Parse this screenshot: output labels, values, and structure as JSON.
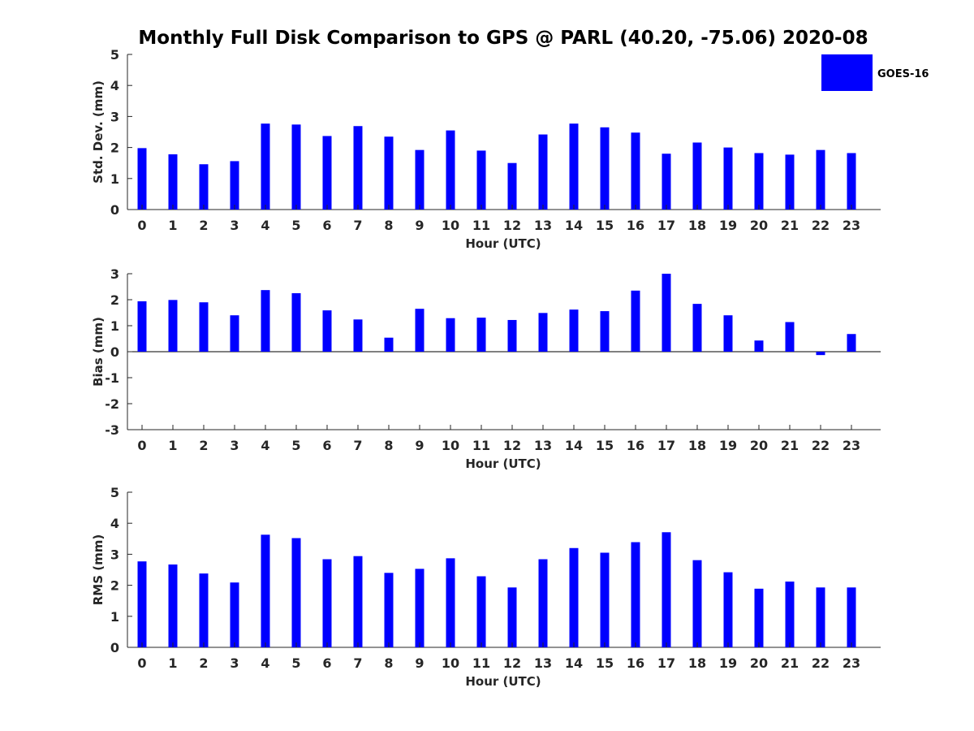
{
  "figure": {
    "title": "Monthly Full Disk Comparison to GPS @ PARL (40.20, -75.06) 2020-08",
    "legend": {
      "label": "GOES-16",
      "color": "#0000ff",
      "placement": "top-right"
    },
    "bar_color": "#0000ff"
  },
  "chart_data": [
    {
      "type": "bar",
      "categories": [
        "0",
        "1",
        "2",
        "3",
        "4",
        "5",
        "6",
        "7",
        "8",
        "9",
        "10",
        "11",
        "12",
        "13",
        "14",
        "15",
        "16",
        "17",
        "18",
        "19",
        "20",
        "21",
        "22",
        "23"
      ],
      "series": [
        {
          "name": "GOES-16",
          "values": [
            1.98,
            1.78,
            1.46,
            1.56,
            2.77,
            2.74,
            2.37,
            2.69,
            2.35,
            1.92,
            2.55,
            1.9,
            1.5,
            2.42,
            2.77,
            2.65,
            2.48,
            1.8,
            2.16,
            2.0,
            1.82,
            1.77,
            1.92,
            1.82
          ]
        }
      ],
      "xlabel": "Hour (UTC)",
      "ylabel": "Std. Dev. (mm)",
      "ylim": [
        0,
        5
      ],
      "yticks": [
        "0",
        "1",
        "2",
        "3",
        "4",
        "5"
      ],
      "grid": false
    },
    {
      "type": "bar",
      "categories": [
        "0",
        "1",
        "2",
        "3",
        "4",
        "5",
        "6",
        "7",
        "8",
        "9",
        "10",
        "11",
        "12",
        "13",
        "14",
        "15",
        "16",
        "17",
        "18",
        "19",
        "20",
        "21",
        "22",
        "23"
      ],
      "series": [
        {
          "name": "GOES-16",
          "values": [
            1.94,
            1.99,
            1.9,
            1.4,
            2.37,
            2.25,
            1.59,
            1.24,
            0.54,
            1.65,
            1.29,
            1.31,
            1.22,
            1.49,
            1.62,
            1.56,
            2.35,
            3.0,
            1.84,
            1.4,
            0.43,
            1.14,
            -0.13,
            0.68
          ]
        }
      ],
      "xlabel": "Hour (UTC)",
      "ylabel": "Bias (mm)",
      "ylim": [
        -3,
        3
      ],
      "yticks": [
        "-3",
        "-2",
        "-1",
        "0",
        "1",
        "2",
        "3"
      ],
      "grid": false
    },
    {
      "type": "bar",
      "categories": [
        "0",
        "1",
        "2",
        "3",
        "4",
        "5",
        "6",
        "7",
        "8",
        "9",
        "10",
        "11",
        "12",
        "13",
        "14",
        "15",
        "16",
        "17",
        "18",
        "19",
        "20",
        "21",
        "22",
        "23"
      ],
      "series": [
        {
          "name": "GOES-16",
          "values": [
            2.77,
            2.67,
            2.38,
            2.09,
            3.63,
            3.52,
            2.84,
            2.94,
            2.4,
            2.53,
            2.87,
            2.29,
            1.93,
            2.84,
            3.2,
            3.05,
            3.39,
            3.71,
            2.81,
            2.42,
            1.89,
            2.12,
            1.93,
            1.93
          ]
        }
      ],
      "xlabel": "Hour (UTC)",
      "ylabel": "RMS (mm)",
      "ylim": [
        0,
        5
      ],
      "yticks": [
        "0",
        "1",
        "2",
        "3",
        "4",
        "5"
      ],
      "grid": false
    }
  ]
}
